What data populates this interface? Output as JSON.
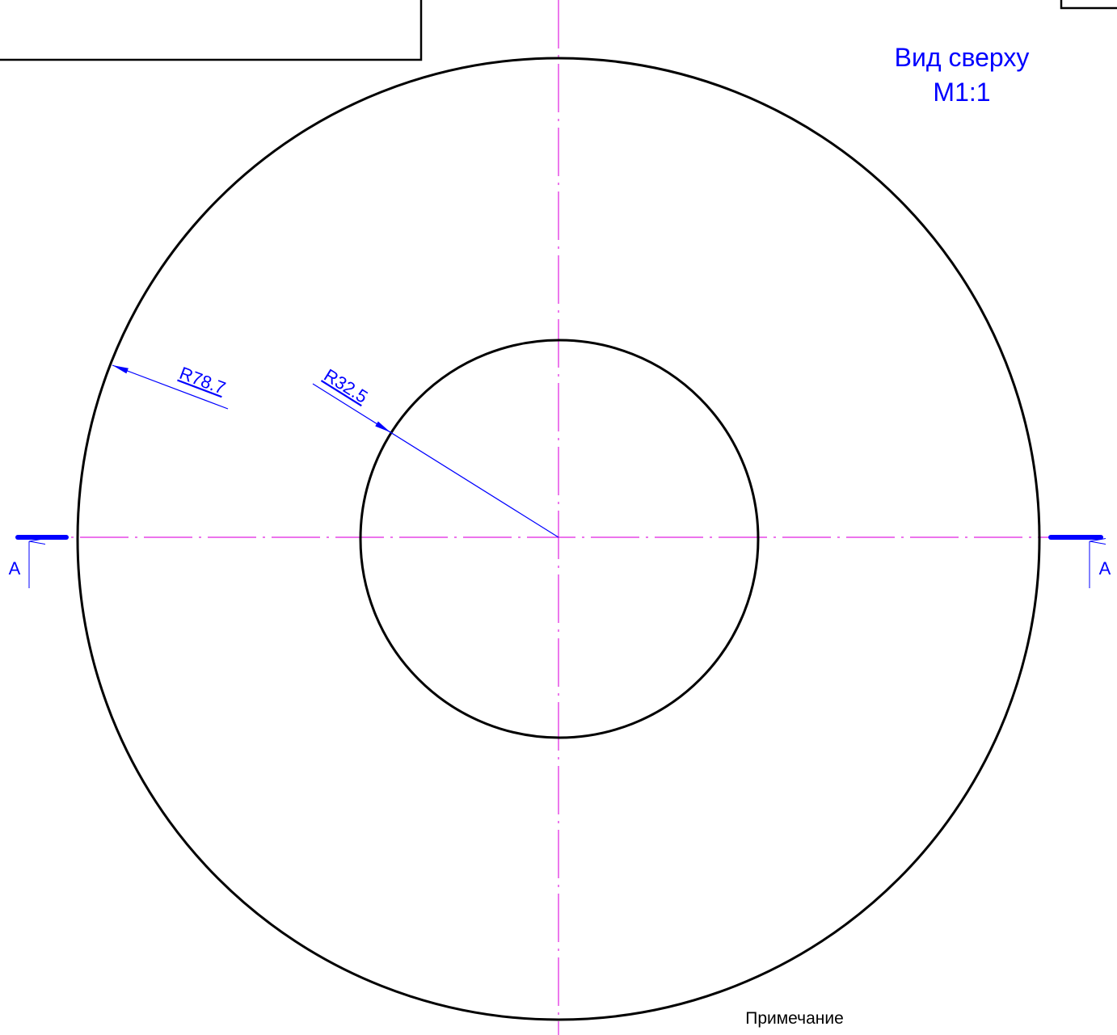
{
  "view": {
    "title": "Вид сверху",
    "scale": "М1:1"
  },
  "dimensions": [
    {
      "label": "R78.7"
    },
    {
      "label": "R32.5"
    }
  ],
  "section_marks": [
    "A",
    "A"
  ],
  "note": "Примечание"
}
